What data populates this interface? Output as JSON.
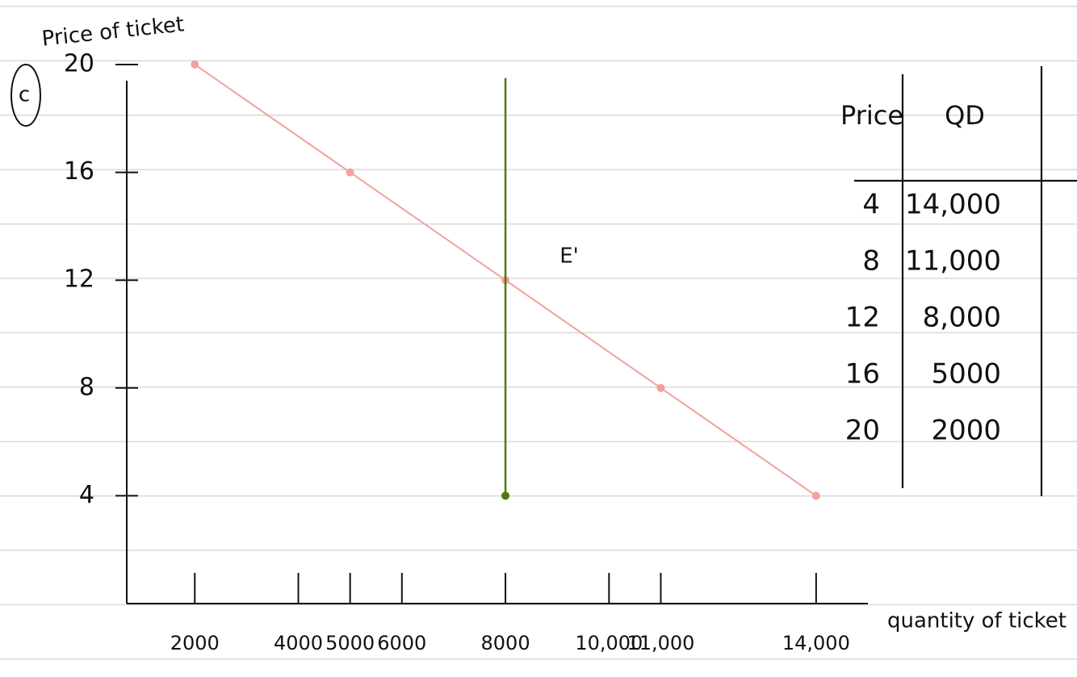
{
  "chart_data": {
    "type": "line",
    "y_label": "Price of ticket",
    "x_label": "quantity of ticket",
    "part_label": "c",
    "annotation": "E'",
    "series": [
      {
        "color": "#f4a09c",
        "x": [
          2000,
          5000,
          8000,
          11000,
          14000
        ],
        "values": [
          20,
          16,
          12,
          8,
          4
        ]
      },
      {
        "color": "#4d7a0f",
        "x": [
          8000,
          8000
        ],
        "values": [
          4,
          19.5
        ]
      }
    ],
    "xlim": [
      0,
      15000
    ],
    "ylim": [
      0,
      20
    ],
    "xticks": [
      {
        "value": 2000,
        "label": "2000"
      },
      {
        "value": 4000,
        "label": "4000"
      },
      {
        "value": 5000,
        "label": "5000"
      },
      {
        "value": 6000,
        "label": "6000"
      },
      {
        "value": 8000,
        "label": "8000"
      },
      {
        "value": 10000,
        "label": "10,000"
      },
      {
        "value": 11000,
        "label": "11,000"
      },
      {
        "value": 14000,
        "label": "14,000"
      }
    ],
    "yticks": [
      4,
      8,
      12,
      16,
      20
    ]
  },
  "table": {
    "header": [
      "Price",
      "QD"
    ],
    "rows": [
      [
        "4",
        "14,000"
      ],
      [
        "8",
        "11,000"
      ],
      [
        "12",
        "8,000"
      ],
      [
        "16",
        "5000"
      ],
      [
        "20",
        "2000"
      ]
    ]
  }
}
